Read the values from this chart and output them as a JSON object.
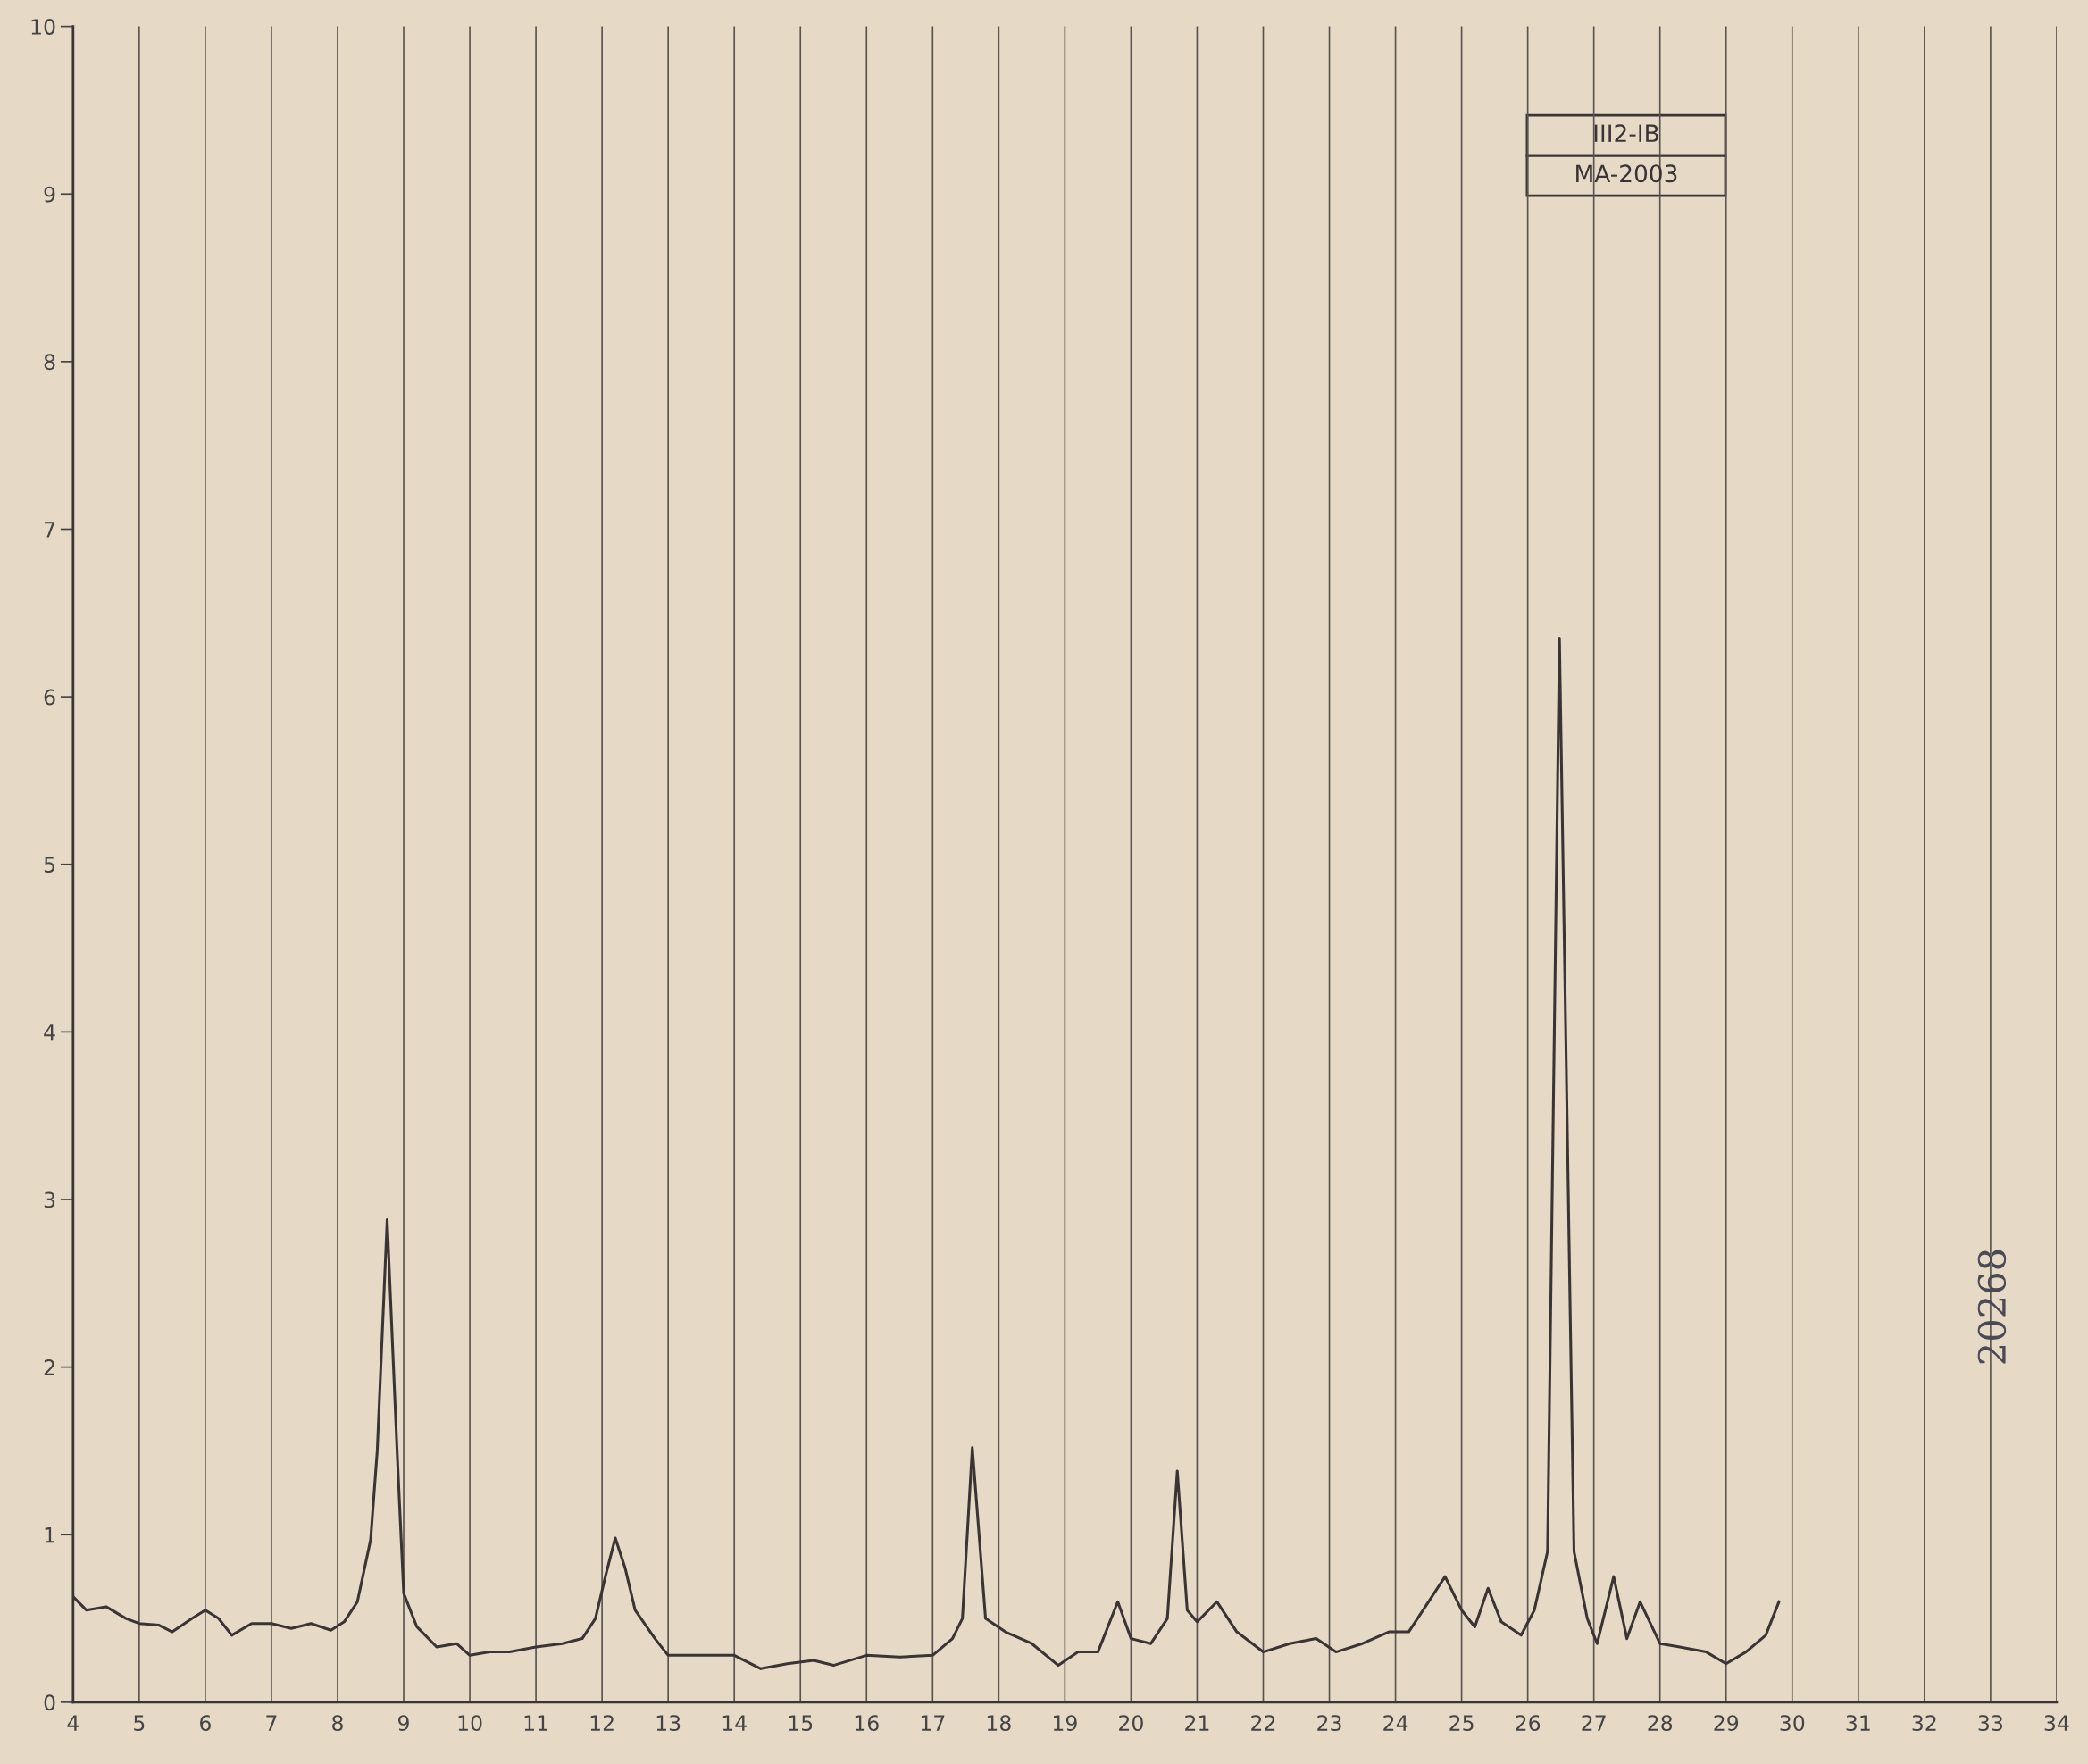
{
  "chart_data": {
    "type": "line",
    "x": [
      4.0,
      4.2,
      4.5,
      4.8,
      5.0,
      5.3,
      5.5,
      5.8,
      6.0,
      6.2,
      6.4,
      6.7,
      7.0,
      7.3,
      7.6,
      7.9,
      8.1,
      8.3,
      8.5,
      8.6,
      8.75,
      8.9,
      9.0,
      9.2,
      9.5,
      9.8,
      10.0,
      10.3,
      10.6,
      11.0,
      11.4,
      11.7,
      11.9,
      12.05,
      12.2,
      12.35,
      12.5,
      12.8,
      13.0,
      13.5,
      14.0,
      14.4,
      14.8,
      15.2,
      15.5,
      16.0,
      16.5,
      17.0,
      17.3,
      17.45,
      17.6,
      17.8,
      18.1,
      18.5,
      18.9,
      19.2,
      19.5,
      19.8,
      20.0,
      20.3,
      20.55,
      20.7,
      20.85,
      21.0,
      21.3,
      21.6,
      22.0,
      22.4,
      22.8,
      23.1,
      23.5,
      23.9,
      24.2,
      24.5,
      24.75,
      25.0,
      25.2,
      25.4,
      25.6,
      25.9,
      26.1,
      26.3,
      26.48,
      26.7,
      26.9,
      27.05,
      27.3,
      27.5,
      27.7,
      28.0,
      28.3,
      28.7,
      29.0,
      29.3,
      29.6,
      29.8
    ],
    "series": [
      {
        "color": "#3a3434",
        "values": [
          0.63,
          0.55,
          0.57,
          0.5,
          0.47,
          0.46,
          0.42,
          0.5,
          0.55,
          0.5,
          0.4,
          0.47,
          0.47,
          0.44,
          0.47,
          0.43,
          0.48,
          0.6,
          0.97,
          1.5,
          2.88,
          1.5,
          0.65,
          0.45,
          0.33,
          0.35,
          0.28,
          0.3,
          0.3,
          0.33,
          0.35,
          0.38,
          0.5,
          0.75,
          0.98,
          0.8,
          0.55,
          0.38,
          0.28,
          0.28,
          0.28,
          0.2,
          0.23,
          0.25,
          0.22,
          0.28,
          0.27,
          0.28,
          0.38,
          0.5,
          1.52,
          0.5,
          0.42,
          0.35,
          0.22,
          0.3,
          0.3,
          0.6,
          0.38,
          0.35,
          0.5,
          1.38,
          0.55,
          0.48,
          0.6,
          0.42,
          0.3,
          0.35,
          0.38,
          0.3,
          0.35,
          0.42,
          0.42,
          0.6,
          0.75,
          0.55,
          0.45,
          0.68,
          0.48,
          0.4,
          0.55,
          0.9,
          6.35,
          0.9,
          0.5,
          0.35,
          0.75,
          0.38,
          0.6,
          0.35,
          0.33,
          0.3,
          0.23,
          0.3,
          0.4,
          0.6
        ]
      }
    ],
    "xlim": [
      4,
      34
    ],
    "xticks": [
      4,
      5,
      6,
      7,
      8,
      9,
      10,
      11,
      12,
      13,
      14,
      15,
      16,
      17,
      18,
      19,
      20,
      21,
      22,
      23,
      24,
      25,
      26,
      27,
      28,
      29,
      30,
      31,
      32,
      33,
      34
    ],
    "ylim": [
      0,
      10
    ],
    "yticks": [
      0,
      1,
      2,
      3,
      4,
      5,
      6,
      7,
      8,
      9,
      10
    ],
    "grid": "x",
    "annotations": [
      "III2-IB",
      "MA-2003",
      "20268"
    ]
  }
}
